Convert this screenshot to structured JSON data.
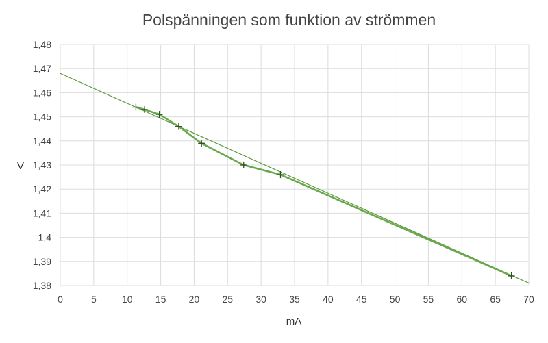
{
  "chart_data": {
    "type": "scatter",
    "title": "Polspänningen som funktion av strömmen",
    "xlabel": "mA",
    "ylabel": "V",
    "xlim": [
      0,
      70
    ],
    "ylim": [
      1.38,
      1.48
    ],
    "x_ticks": [
      "0",
      "5",
      "10",
      "15",
      "20",
      "25",
      "30",
      "35",
      "40",
      "45",
      "50",
      "55",
      "60",
      "65",
      "70"
    ],
    "y_ticks": [
      "1,38",
      "1,39",
      "1,4",
      "1,41",
      "1,42",
      "1,43",
      "1,44",
      "1,45",
      "1,46",
      "1,47",
      "1,48"
    ],
    "grid": true,
    "legend": "none",
    "series": [
      {
        "x": [
          11.3,
          12.6,
          14.8,
          17.7,
          21.1,
          27.4,
          32.9,
          67.4
        ],
        "y": [
          1.454,
          1.453,
          1.451,
          1.446,
          1.439,
          1.43,
          1.426,
          1.384
        ],
        "marker": "+",
        "connect": true,
        "color": "#6aa84f"
      }
    ],
    "trendline": {
      "type": "linear",
      "x": [
        0,
        70
      ],
      "y": [
        1.468,
        1.381
      ],
      "color": "#5b9a3a"
    }
  }
}
